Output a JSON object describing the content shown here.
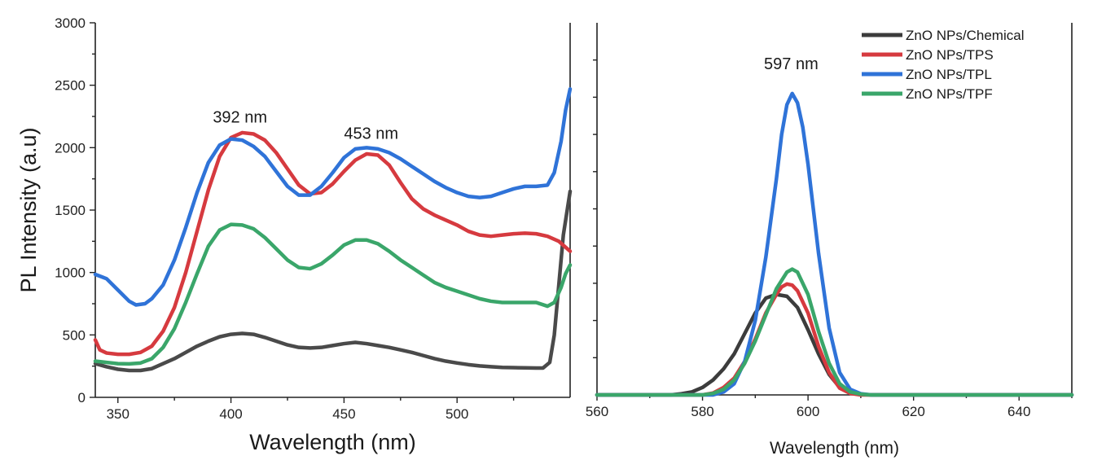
{
  "chart_data": [
    {
      "type": "line",
      "id": "left",
      "title": "",
      "xlabel": "Wavelength (nm)",
      "ylabel": "PL Intensity (a.u)",
      "xlim": [
        340,
        550
      ],
      "ylim": [
        0,
        3000
      ],
      "xticks": [
        350,
        400,
        450,
        500
      ],
      "yticks": [
        0,
        500,
        1000,
        1500,
        2000,
        2500,
        3000
      ],
      "annotations": [
        {
          "text": "392 nm",
          "x": 404,
          "y": 2200
        },
        {
          "text": "453 nm",
          "x": 462,
          "y": 2070
        }
      ],
      "series": [
        {
          "name": "ZnO NPs/Chemical",
          "color": "#4a4a4a",
          "points": [
            [
              340,
              270
            ],
            [
              345,
              245
            ],
            [
              350,
              225
            ],
            [
              355,
              215
            ],
            [
              360,
              215
            ],
            [
              365,
              230
            ],
            [
              370,
              270
            ],
            [
              375,
              310
            ],
            [
              380,
              360
            ],
            [
              385,
              410
            ],
            [
              390,
              450
            ],
            [
              395,
              485
            ],
            [
              400,
              505
            ],
            [
              405,
              512
            ],
            [
              410,
              505
            ],
            [
              415,
              480
            ],
            [
              420,
              450
            ],
            [
              425,
              420
            ],
            [
              430,
              400
            ],
            [
              435,
              395
            ],
            [
              440,
              400
            ],
            [
              445,
              415
            ],
            [
              450,
              430
            ],
            [
              455,
              440
            ],
            [
              460,
              430
            ],
            [
              465,
              415
            ],
            [
              470,
              400
            ],
            [
              475,
              380
            ],
            [
              480,
              360
            ],
            [
              485,
              335
            ],
            [
              490,
              310
            ],
            [
              495,
              290
            ],
            [
              500,
              275
            ],
            [
              505,
              262
            ],
            [
              510,
              252
            ],
            [
              515,
              245
            ],
            [
              520,
              240
            ],
            [
              525,
              238
            ],
            [
              530,
              236
            ],
            [
              535,
              235
            ],
            [
              538,
              235
            ],
            [
              541,
              280
            ],
            [
              543,
              500
            ],
            [
              545,
              900
            ],
            [
              547,
              1300
            ],
            [
              550,
              1650
            ]
          ]
        },
        {
          "name": "ZnO NPs/TPS",
          "color": "#d63a3f",
          "points": [
            [
              340,
              460
            ],
            [
              342,
              380
            ],
            [
              345,
              355
            ],
            [
              350,
              345
            ],
            [
              355,
              345
            ],
            [
              360,
              360
            ],
            [
              365,
              410
            ],
            [
              370,
              530
            ],
            [
              375,
              720
            ],
            [
              380,
              1000
            ],
            [
              385,
              1330
            ],
            [
              390,
              1660
            ],
            [
              395,
              1930
            ],
            [
              400,
              2080
            ],
            [
              405,
              2120
            ],
            [
              410,
              2110
            ],
            [
              415,
              2060
            ],
            [
              420,
              1960
            ],
            [
              425,
              1830
            ],
            [
              430,
              1700
            ],
            [
              435,
              1630
            ],
            [
              440,
              1640
            ],
            [
              445,
              1710
            ],
            [
              450,
              1810
            ],
            [
              455,
              1900
            ],
            [
              460,
              1950
            ],
            [
              465,
              1940
            ],
            [
              470,
              1860
            ],
            [
              475,
              1720
            ],
            [
              480,
              1590
            ],
            [
              485,
              1510
            ],
            [
              490,
              1460
            ],
            [
              495,
              1420
            ],
            [
              500,
              1380
            ],
            [
              505,
              1330
            ],
            [
              510,
              1300
            ],
            [
              515,
              1290
            ],
            [
              520,
              1300
            ],
            [
              525,
              1310
            ],
            [
              530,
              1315
            ],
            [
              535,
              1310
            ],
            [
              540,
              1290
            ],
            [
              545,
              1250
            ],
            [
              550,
              1170
            ]
          ]
        },
        {
          "name": "ZnO NPs/TPL",
          "color": "#2f73d8",
          "points": [
            [
              340,
              985
            ],
            [
              345,
              950
            ],
            [
              350,
              860
            ],
            [
              355,
              770
            ],
            [
              358,
              740
            ],
            [
              362,
              750
            ],
            [
              365,
              790
            ],
            [
              370,
              900
            ],
            [
              375,
              1100
            ],
            [
              380,
              1360
            ],
            [
              385,
              1640
            ],
            [
              390,
              1880
            ],
            [
              395,
              2020
            ],
            [
              400,
              2070
            ],
            [
              405,
              2060
            ],
            [
              410,
              2010
            ],
            [
              415,
              1930
            ],
            [
              420,
              1810
            ],
            [
              425,
              1690
            ],
            [
              430,
              1620
            ],
            [
              435,
              1620
            ],
            [
              440,
              1690
            ],
            [
              445,
              1800
            ],
            [
              450,
              1920
            ],
            [
              455,
              1990
            ],
            [
              460,
              2000
            ],
            [
              465,
              1990
            ],
            [
              470,
              1960
            ],
            [
              475,
              1910
            ],
            [
              480,
              1850
            ],
            [
              485,
              1790
            ],
            [
              490,
              1730
            ],
            [
              495,
              1680
            ],
            [
              500,
              1640
            ],
            [
              505,
              1610
            ],
            [
              510,
              1600
            ],
            [
              515,
              1610
            ],
            [
              520,
              1640
            ],
            [
              525,
              1670
            ],
            [
              530,
              1690
            ],
            [
              535,
              1690
            ],
            [
              540,
              1700
            ],
            [
              543,
              1800
            ],
            [
              546,
              2050
            ],
            [
              548,
              2300
            ],
            [
              550,
              2470
            ]
          ]
        },
        {
          "name": "ZnO NPs/TPF",
          "color": "#3aa66a",
          "points": [
            [
              340,
              290
            ],
            [
              345,
              280
            ],
            [
              350,
              270
            ],
            [
              355,
              268
            ],
            [
              360,
              275
            ],
            [
              365,
              310
            ],
            [
              370,
              400
            ],
            [
              375,
              550
            ],
            [
              380,
              760
            ],
            [
              385,
              990
            ],
            [
              390,
              1210
            ],
            [
              395,
              1340
            ],
            [
              400,
              1385
            ],
            [
              405,
              1380
            ],
            [
              410,
              1350
            ],
            [
              415,
              1280
            ],
            [
              420,
              1190
            ],
            [
              425,
              1100
            ],
            [
              430,
              1040
            ],
            [
              435,
              1030
            ],
            [
              440,
              1070
            ],
            [
              445,
              1140
            ],
            [
              450,
              1220
            ],
            [
              455,
              1260
            ],
            [
              460,
              1260
            ],
            [
              465,
              1230
            ],
            [
              470,
              1170
            ],
            [
              475,
              1100
            ],
            [
              480,
              1040
            ],
            [
              485,
              980
            ],
            [
              490,
              920
            ],
            [
              495,
              880
            ],
            [
              500,
              850
            ],
            [
              505,
              820
            ],
            [
              510,
              790
            ],
            [
              515,
              770
            ],
            [
              520,
              760
            ],
            [
              525,
              760
            ],
            [
              530,
              760
            ],
            [
              535,
              760
            ],
            [
              540,
              730
            ],
            [
              543,
              760
            ],
            [
              546,
              880
            ],
            [
              548,
              990
            ],
            [
              550,
              1060
            ]
          ]
        }
      ]
    },
    {
      "type": "line",
      "id": "right",
      "title": "",
      "xlabel": "Wavelength (nm)",
      "ylabel": "",
      "xlim": [
        560,
        650
      ],
      "ylim": [
        0,
        1
      ],
      "xticks": [
        560,
        580,
        600,
        620,
        640
      ],
      "yticks_unlabeled": [
        0.1,
        0.2,
        0.3,
        0.4,
        0.5,
        0.6,
        0.7,
        0.8,
        0.9
      ],
      "annotations": [
        {
          "text": "597 nm",
          "x": 596.8,
          "y": 0.875
        }
      ],
      "legend": {
        "position": "top-right"
      },
      "series": [
        {
          "name": "ZnO NPs/Chemical",
          "color": "#3c3c3c",
          "points": [
            [
              560,
              0
            ],
            [
              574,
              0
            ],
            [
              576,
              0.003
            ],
            [
              578,
              0.008
            ],
            [
              580,
              0.02
            ],
            [
              582,
              0.04
            ],
            [
              584,
              0.07
            ],
            [
              586,
              0.11
            ],
            [
              588,
              0.165
            ],
            [
              590,
              0.22
            ],
            [
              592,
              0.26
            ],
            [
              594,
              0.27
            ],
            [
              596,
              0.265
            ],
            [
              598,
              0.235
            ],
            [
              600,
              0.175
            ],
            [
              602,
              0.11
            ],
            [
              604,
              0.055
            ],
            [
              606,
              0.02
            ],
            [
              608,
              0.005
            ],
            [
              610,
              0.001
            ],
            [
              612,
              0
            ],
            [
              650,
              0
            ]
          ]
        },
        {
          "name": "ZnO NPs/TPS",
          "color": "#d63a3f",
          "points": [
            [
              560,
              0
            ],
            [
              580,
              0
            ],
            [
              582,
              0.005
            ],
            [
              584,
              0.02
            ],
            [
              586,
              0.045
            ],
            [
              588,
              0.09
            ],
            [
              590,
              0.15
            ],
            [
              592,
              0.22
            ],
            [
              594,
              0.27
            ],
            [
              595,
              0.29
            ],
            [
              596,
              0.298
            ],
            [
              597,
              0.295
            ],
            [
              598,
              0.28
            ],
            [
              600,
              0.22
            ],
            [
              602,
              0.13
            ],
            [
              604,
              0.06
            ],
            [
              606,
              0.018
            ],
            [
              608,
              0.004
            ],
            [
              610,
              0
            ],
            [
              650,
              0
            ]
          ]
        },
        {
          "name": "ZnO NPs/TPL",
          "color": "#2f73d8",
          "points": [
            [
              560,
              0
            ],
            [
              582,
              0
            ],
            [
              584,
              0.008
            ],
            [
              586,
              0.03
            ],
            [
              588,
              0.09
            ],
            [
              590,
              0.2
            ],
            [
              592,
              0.37
            ],
            [
              594,
              0.58
            ],
            [
              595,
              0.7
            ],
            [
              596,
              0.78
            ],
            [
              597,
              0.81
            ],
            [
              598,
              0.785
            ],
            [
              599,
              0.72
            ],
            [
              600,
              0.62
            ],
            [
              602,
              0.38
            ],
            [
              604,
              0.18
            ],
            [
              606,
              0.06
            ],
            [
              608,
              0.015
            ],
            [
              610,
              0.003
            ],
            [
              612,
              0
            ],
            [
              650,
              0
            ]
          ]
        },
        {
          "name": "ZnO NPs/TPF",
          "color": "#3aa66a",
          "points": [
            [
              560,
              0
            ],
            [
              580,
              0
            ],
            [
              582,
              0.004
            ],
            [
              584,
              0.015
            ],
            [
              586,
              0.04
            ],
            [
              588,
              0.085
            ],
            [
              590,
              0.145
            ],
            [
              592,
              0.215
            ],
            [
              594,
              0.285
            ],
            [
              596,
              0.33
            ],
            [
              597,
              0.338
            ],
            [
              598,
              0.33
            ],
            [
              600,
              0.27
            ],
            [
              602,
              0.17
            ],
            [
              604,
              0.085
            ],
            [
              606,
              0.03
            ],
            [
              608,
              0.008
            ],
            [
              610,
              0.002
            ],
            [
              612,
              0
            ],
            [
              650,
              0
            ]
          ]
        }
      ]
    }
  ]
}
